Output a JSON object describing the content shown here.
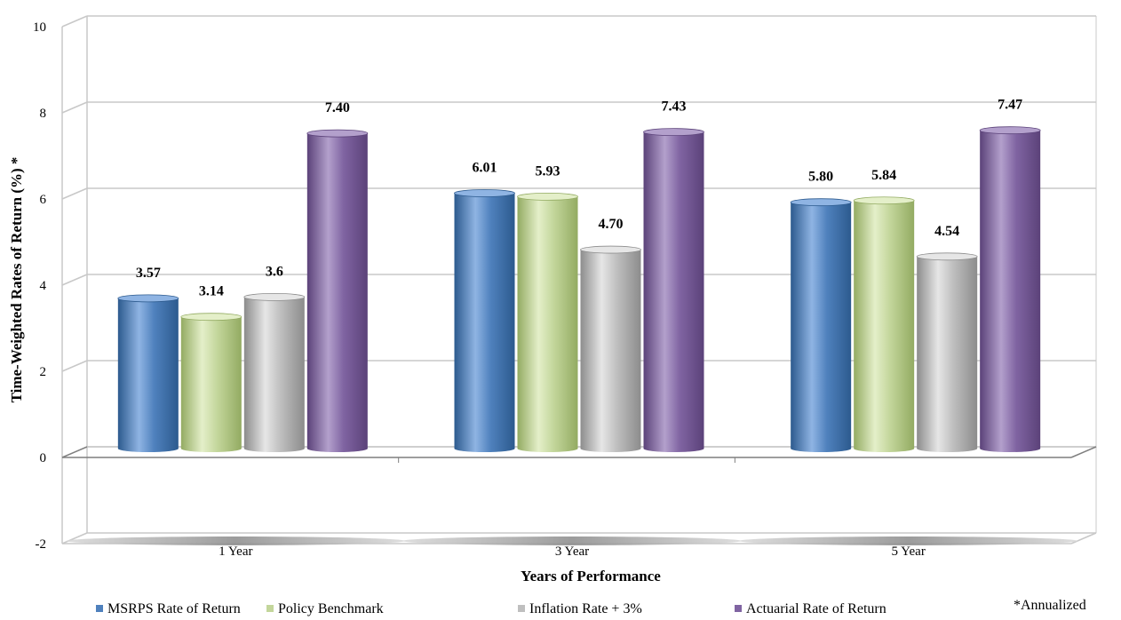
{
  "chart_data": {
    "type": "bar",
    "categories": [
      "1 Year",
      "3 Year",
      "5 Year"
    ],
    "series": [
      {
        "name": "MSRPS Rate of Return",
        "values": [
          3.57,
          6.01,
          5.8
        ],
        "labels": [
          "3.57",
          "6.01",
          "5.80"
        ],
        "color": "#4f81bd",
        "colorDark": "#2c5a8e",
        "colorLight": "#8fb4e3"
      },
      {
        "name": "Policy Benchmark",
        "values": [
          3.14,
          5.93,
          5.84
        ],
        "labels": [
          "3.14",
          "5.93",
          "5.84"
        ],
        "color": "#c3d69b",
        "colorDark": "#93ab62",
        "colorLight": "#e4efc9"
      },
      {
        "name": "Inflation Rate + 3%",
        "values": [
          3.6,
          4.7,
          4.54
        ],
        "labels": [
          "3.6",
          "4.70",
          "4.54"
        ],
        "color": "#bfbfbf",
        "colorDark": "#8c8c8c",
        "colorLight": "#e6e6e6"
      },
      {
        "name": "Actuarial Rate of Return",
        "values": [
          7.4,
          7.43,
          7.47
        ],
        "labels": [
          "7.40",
          "7.43",
          "7.47"
        ],
        "color": "#8064a2",
        "colorDark": "#5b4279",
        "colorLight": "#b3a0cc"
      }
    ],
    "ylabel": "Time-Weighted Rates of Return (%) *",
    "xlabel": "Years of Performance",
    "ylim": [
      -2,
      10
    ],
    "yticks": [
      -2,
      0,
      2,
      4,
      6,
      8,
      10
    ],
    "grid": true,
    "legend": "bottom",
    "note": "*Annualized"
  }
}
